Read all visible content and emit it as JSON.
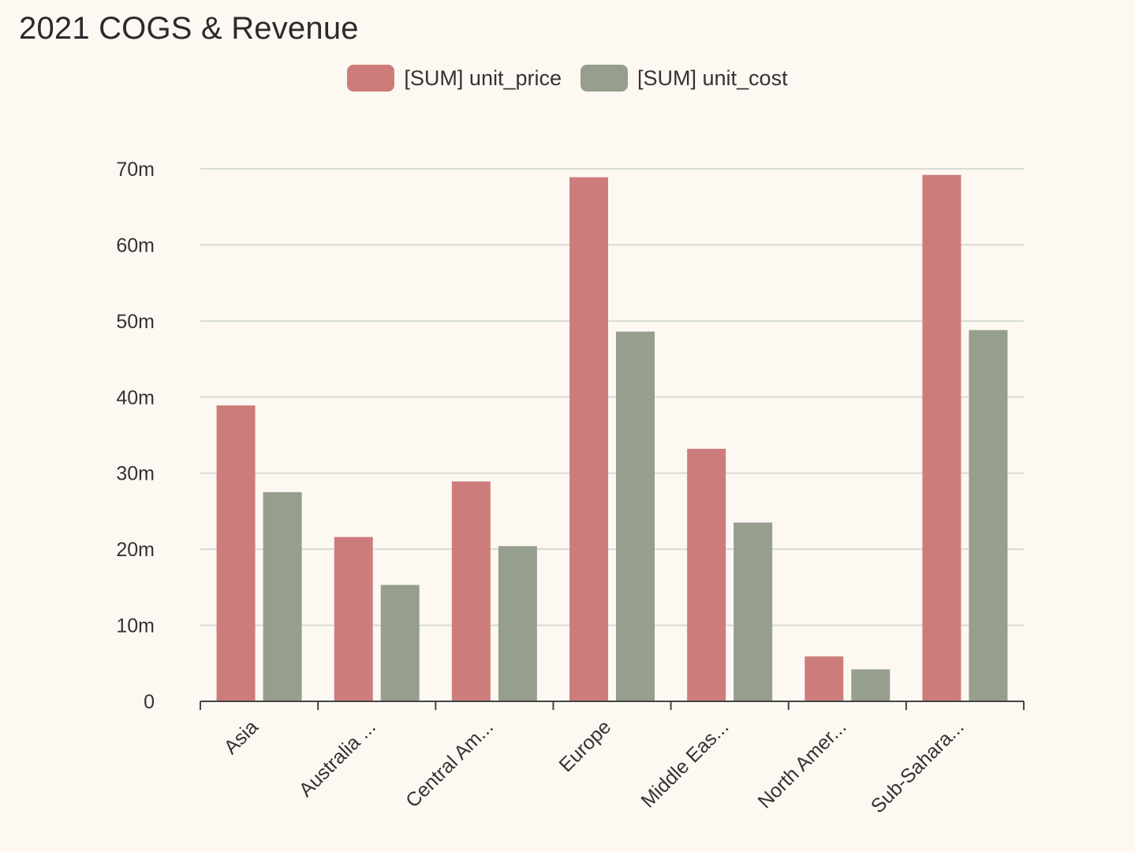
{
  "chart_data": {
    "type": "bar",
    "title": "2021 COGS & Revenue",
    "categories": [
      "Asia",
      "Australia ...",
      "Central Am...",
      "Europe",
      "Middle Eas...",
      "North Amer...",
      "Sub-Sahara..."
    ],
    "series": [
      {
        "name": "[SUM] unit_price",
        "color": "#cc7d7b",
        "values": [
          38.9,
          21.6,
          28.9,
          68.9,
          33.2,
          5.9,
          69.2
        ]
      },
      {
        "name": "[SUM] unit_cost",
        "color": "#969e8d",
        "values": [
          27.5,
          15.3,
          20.4,
          48.6,
          23.5,
          4.2,
          48.8
        ]
      }
    ],
    "ylim": [
      0,
      70
    ],
    "yticks": [
      0,
      10,
      20,
      30,
      40,
      50,
      60,
      70
    ],
    "ytick_labels": [
      "0",
      "10m",
      "20m",
      "30m",
      "40m",
      "50m",
      "60m",
      "70m"
    ],
    "xlabel": "",
    "ylabel": "",
    "legend": "top-center",
    "grid": true
  }
}
